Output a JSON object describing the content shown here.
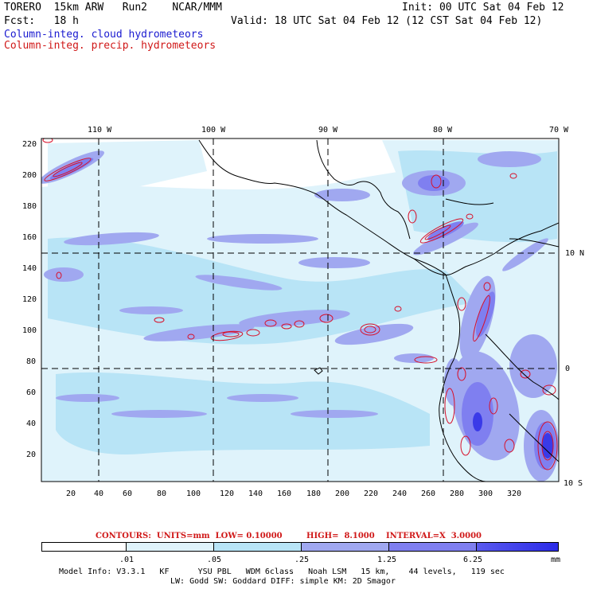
{
  "header": {
    "model": "TORERO  15km ARW   Run2    NCAR/MMM",
    "init": "Init: 00 UTC Sat 04 Feb 12",
    "fcst": "Fcst:   18 h",
    "valid": "Valid: 18 UTC Sat 04 Feb 12 (12 CST Sat 04 Feb 12)",
    "field_cloud": "Column-integ. cloud hydrometeors",
    "field_precip": "Column-integ. precip. hydrometeors"
  },
  "map": {
    "lon_labels": [
      "110 W",
      "100 W",
      "90 W",
      "80 W",
      "70 W"
    ],
    "lat_labels": [
      "10 N",
      "0",
      "10 S"
    ],
    "y_ticks": [
      "220",
      "200",
      "180",
      "160",
      "140",
      "120",
      "100",
      "80",
      "60",
      "40",
      "20"
    ],
    "x_ticks": [
      "20",
      "40",
      "60",
      "80",
      "100",
      "120",
      "140",
      "160",
      "180",
      "200",
      "220",
      "240",
      "260",
      "280",
      "300",
      "320"
    ],
    "colors": {
      "shade1": "#dff3fb",
      "shade2": "#b8e4f6",
      "shade3": "#a0a8f0",
      "shade4": "#7f7ff0",
      "shade5": "#3a3ae8",
      "contour": "#d8102a",
      "coast": "#000000"
    }
  },
  "contours": {
    "label": "CONTOURS:  UNITS=mm  LOW= 0.10000",
    "high": "HIGH=  8.1000",
    "interval": "INTERVAL=X  3.0000"
  },
  "colorbar": {
    "ticks": [
      ".01",
      ".05",
      ".25",
      "1.25",
      "6.25"
    ],
    "unit": "mm",
    "colors": [
      "#ffffff",
      "#dff3fb",
      "#b8e4f6",
      "#a0a8f0",
      "#7f7ff0",
      "#5a5aee",
      "#2a2ae8"
    ]
  },
  "footer": {
    "line1": "Model Info: V3.3.1   KF      YSU PBL   WDM 6class   Noah LSM   15 km,    44 levels,   119 sec",
    "line2": "LW: Godd SW: Goddard DIFF: simple KM: 2D Smagor"
  }
}
